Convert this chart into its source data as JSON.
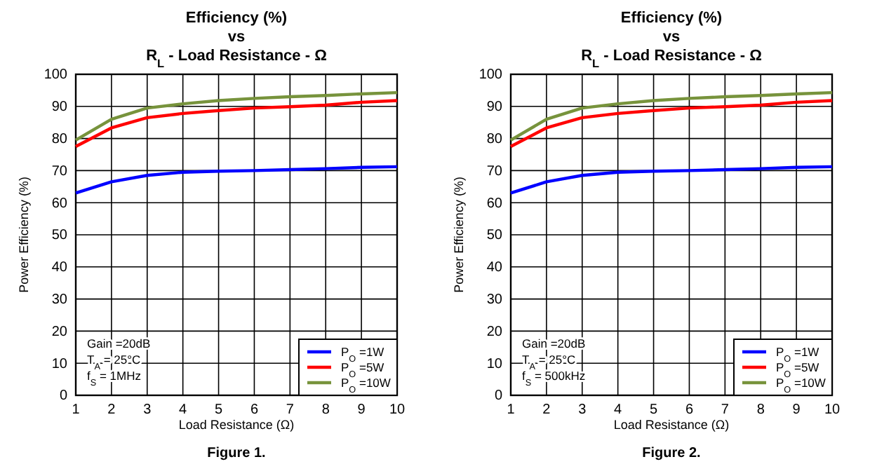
{
  "chart_data": [
    {
      "type": "line",
      "title": "Efficiency (%)\nvs\nR$_{L}$ - Load Resistance - Ω",
      "xlabel": "Load Resistance (Ω)",
      "ylabel": "Power Efficiency (%)",
      "x": [
        1,
        2,
        3,
        4,
        5,
        6,
        7,
        8,
        9,
        10
      ],
      "series": [
        {
          "name": "P$_{O}$ =1W",
          "color": "#0000ff",
          "values": [
            63,
            66.5,
            68.5,
            69.5,
            69.8,
            70,
            70.3,
            70.6,
            71,
            71.2
          ]
        },
        {
          "name": "P$_{O}$ =5W",
          "color": "#ff0000",
          "values": [
            77.5,
            83.3,
            86.5,
            87.8,
            88.7,
            89.5,
            89.9,
            90.4,
            91.3,
            91.8
          ]
        },
        {
          "name": "P$_{O}$ =10W",
          "color": "#77933c",
          "values": [
            79.5,
            86,
            89.5,
            90.8,
            91.8,
            92.5,
            93,
            93.4,
            93.9,
            94.3
          ]
        }
      ],
      "xlim": [
        1,
        10
      ],
      "xticks": [
        1,
        2,
        3,
        4,
        5,
        6,
        7,
        8,
        9,
        10
      ],
      "ylim": [
        0,
        100
      ],
      "yticks": [
        0,
        10,
        20,
        30,
        40,
        50,
        60,
        70,
        80,
        90,
        100
      ],
      "grid": true,
      "legend": "bottom right",
      "annotations": [
        "Gain =20dB",
        "T$_{A}$ = 25°C",
        "f$_{S}$ = 1MHz",
        "Figure 1."
      ]
    },
    {
      "type": "line",
      "title": "Efficiency (%)\nvs\nR$_{L}$ - Load Resistance - Ω",
      "xlabel": "Load Resistance (Ω)",
      "ylabel": "Power Efficiency (%)",
      "x": [
        1,
        2,
        3,
        4,
        5,
        6,
        7,
        8,
        9,
        10
      ],
      "series": [
        {
          "name": "P$_{O}$ =1W",
          "color": "#0000ff",
          "values": [
            63,
            66.5,
            68.5,
            69.5,
            69.8,
            70,
            70.3,
            70.6,
            71,
            71.2
          ]
        },
        {
          "name": "P$_{O}$ =5W",
          "color": "#ff0000",
          "values": [
            77.5,
            83.3,
            86.5,
            87.8,
            88.7,
            89.5,
            89.9,
            90.4,
            91.3,
            91.8
          ]
        },
        {
          "name": "P$_{O}$ =10W",
          "color": "#77933c",
          "values": [
            79.5,
            86,
            89.5,
            90.8,
            91.8,
            92.5,
            93,
            93.4,
            93.9,
            94.3
          ]
        }
      ],
      "xlim": [
        1,
        10
      ],
      "xticks": [
        1,
        2,
        3,
        4,
        5,
        6,
        7,
        8,
        9,
        10
      ],
      "ylim": [
        0,
        100
      ],
      "yticks": [
        0,
        10,
        20,
        30,
        40,
        50,
        60,
        70,
        80,
        90,
        100
      ],
      "grid": true,
      "legend": "bottom right",
      "annotations": [
        "Gain =20dB",
        "T$_{A}$ = 25°C",
        "f$_{S}$ = 500kHz",
        "Figure 2."
      ]
    }
  ]
}
